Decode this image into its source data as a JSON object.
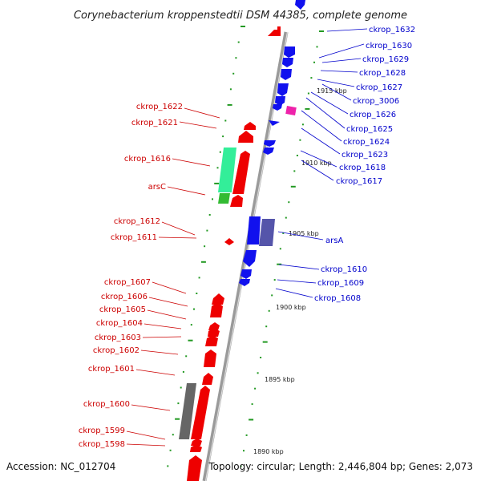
{
  "title": "Corynebacterium kroppenstedtii DSM 44385, complete genome",
  "footer": {
    "accession": "Accession: NC_012704",
    "topology": "Topology: circular; Length: 2,446,804 bp; Genes: 2,073"
  },
  "scale_labels": [
    "1915 kbp",
    "1910 kbp",
    "1905 kbp",
    "1900 kbp",
    "1895 kbp",
    "1890 kbp"
  ],
  "left_labels": [
    "ckrop_1622",
    "ckrop_1621",
    "ckrop_1616",
    "arsC",
    "ckrop_1612",
    "ckrop_1611",
    "ckrop_1607",
    "ckrop_1606",
    "ckrop_1605",
    "ckrop_1604",
    "ckrop_1603",
    "ckrop_1602",
    "ckrop_1601",
    "ckrop_1600",
    "ckrop_1599",
    "ckrop_1598"
  ],
  "right_labels": [
    "ckrop_1632",
    "ckrop_1630",
    "ckrop_1629",
    "ckrop_1628",
    "ckrop_1627",
    "ckrop_3006",
    "ckrop_1626",
    "ckrop_1625",
    "ckrop_1624",
    "ckrop_1623",
    "ckrop_1618",
    "ckrop_1617",
    "arsA",
    "ckrop_1610",
    "ckrop_1609",
    "ckrop_1608"
  ],
  "colors": {
    "forward_gene": "#ee0000",
    "reverse_gene": "#1111ee",
    "highlight_green": "#33ee99",
    "green_gene": "#33bb33",
    "purple_gene": "#5555aa",
    "pink_gene": "#ee22aa",
    "grey_gene": "#666666",
    "backbone": "#999999",
    "tick_green": "#229922"
  }
}
